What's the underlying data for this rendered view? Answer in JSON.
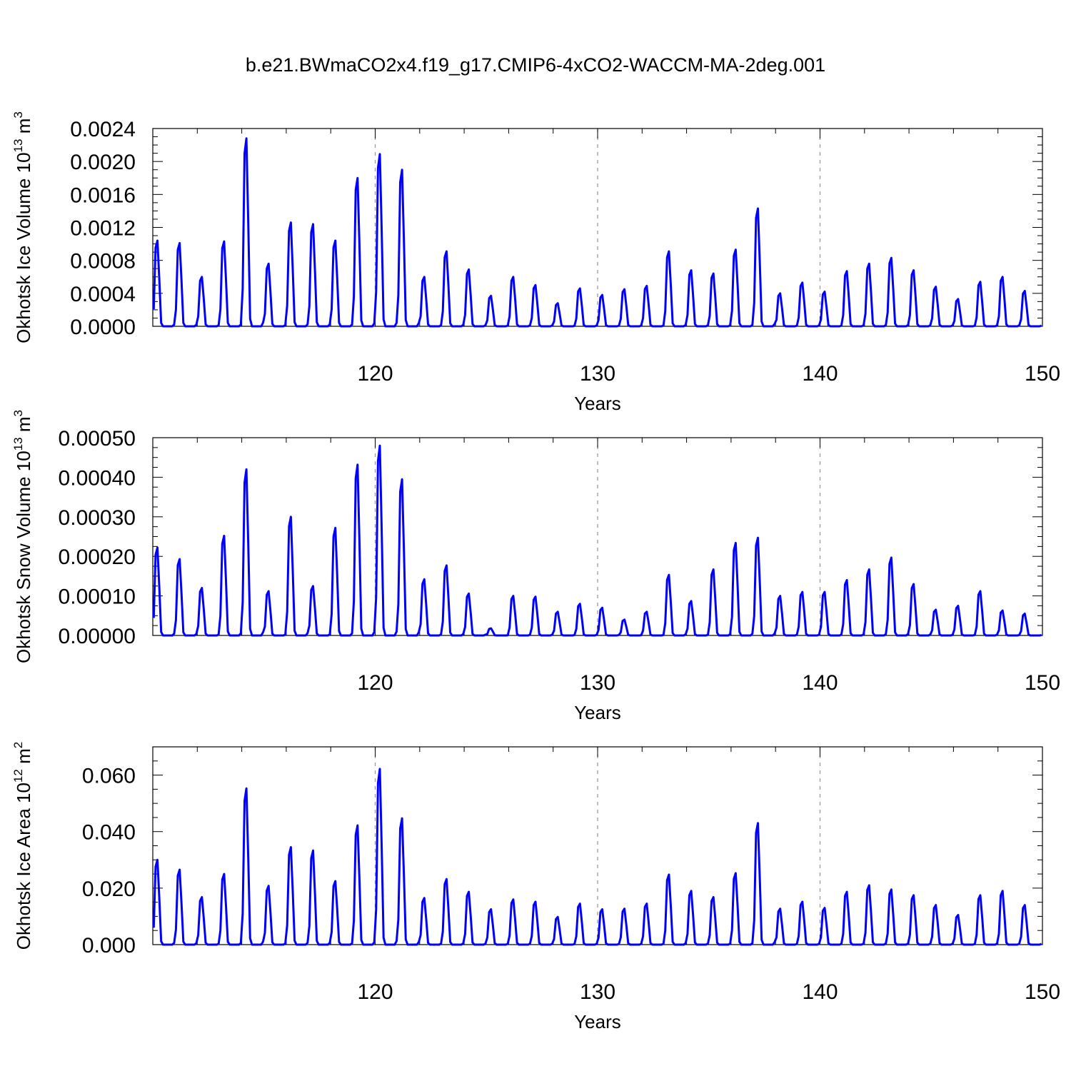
{
  "title": "b.e21.BWmaCO2x4.f19_g17.CMIP6-4xCO2-WACCM-MA-2deg.001",
  "colors": {
    "line": "#0000ff",
    "axis": "#000000",
    "grid": "#999999"
  },
  "chart_data": [
    {
      "type": "line",
      "name": "okhotsk-ice-volume",
      "xlabel": "Years",
      "ylabel": "Okhotsk Ice Volume 10",
      "ylabel_exp": "13",
      "ylabel_unit": " m",
      "ylabel_unit_exp": "3",
      "xlim": [
        110,
        150
      ],
      "ylim": [
        0,
        0.0024
      ],
      "x_ticks": [
        120,
        130,
        140,
        150
      ],
      "x_tick_labels": [
        "120",
        "130",
        "140",
        "150"
      ],
      "y_ticks": [
        0,
        0.0004,
        0.0008,
        0.0012,
        0.0016,
        0.002,
        0.0024
      ],
      "y_tick_labels": [
        "0.0000",
        "0.0004",
        "0.0008",
        "0.0012",
        "0.0016",
        "0.0020",
        "0.0024"
      ],
      "grid_x": [
        120,
        130,
        140
      ],
      "peaks": [
        0.00104,
        0.00101,
        0.0006,
        0.00103,
        0.00228,
        0.00076,
        0.00126,
        0.00124,
        0.00104,
        0.0018,
        0.00209,
        0.0019,
        0.0006,
        0.00091,
        0.00069,
        0.00037,
        0.0006,
        0.0005,
        0.00028,
        0.00046,
        0.00038,
        0.00045,
        0.00049,
        0.00091,
        0.00068,
        0.00064,
        0.00093,
        0.00143,
        0.0004,
        0.00053,
        0.00042,
        0.00067,
        0.00076,
        0.00083,
        0.00068,
        0.00048,
        0.00033,
        0.00054,
        0.0006,
        0.00043
      ]
    },
    {
      "type": "line",
      "name": "okhotsk-snow-volume",
      "xlabel": "Years",
      "ylabel": "Okhotsk Snow Volume 10",
      "ylabel_exp": "13",
      "ylabel_unit": " m",
      "ylabel_unit_exp": "3",
      "xlim": [
        110,
        150
      ],
      "ylim": [
        0,
        0.0005
      ],
      "x_ticks": [
        120,
        130,
        140,
        150
      ],
      "x_tick_labels": [
        "120",
        "130",
        "140",
        "150"
      ],
      "y_ticks": [
        0,
        0.0001,
        0.0002,
        0.0003,
        0.0004,
        0.0005
      ],
      "y_tick_labels": [
        "0.00000",
        "0.00010",
        "0.00020",
        "0.00030",
        "0.00040",
        "0.00050"
      ],
      "grid_x": [
        120,
        130,
        140
      ],
      "peaks": [
        0.000222,
        0.000193,
        0.00012,
        0.000252,
        0.00042,
        0.000112,
        0.0003,
        0.000125,
        0.000272,
        0.000432,
        0.00048,
        0.000395,
        0.000142,
        0.000177,
        0.000106,
        1.8e-05,
        0.0001,
        9.8e-05,
        6e-05,
        8e-05,
        7e-05,
        4e-05,
        6e-05,
        0.000153,
        8.7e-05,
        0.000167,
        0.000234,
        0.000247,
        0.0001,
        0.00011,
        0.00011,
        0.00014,
        0.000167,
        0.000197,
        0.00013,
        6.5e-05,
        7.5e-05,
        0.000112,
        6.3e-05,
        5.5e-05
      ]
    },
    {
      "type": "line",
      "name": "okhotsk-ice-area",
      "xlabel": "Years",
      "ylabel": "Okhotsk Ice Area 10",
      "ylabel_exp": "12",
      "ylabel_unit": " m",
      "ylabel_unit_exp": "2",
      "xlim": [
        110,
        150
      ],
      "ylim": [
        0,
        0.07
      ],
      "x_ticks": [
        120,
        130,
        140,
        150
      ],
      "x_tick_labels": [
        "120",
        "130",
        "140",
        "150"
      ],
      "y_ticks": [
        0,
        0.02,
        0.04,
        0.06
      ],
      "y_tick_labels": [
        "0.000",
        "0.020",
        "0.040",
        "0.060"
      ],
      "grid_x": [
        120,
        130,
        140
      ],
      "peaks": [
        0.03,
        0.0265,
        0.0168,
        0.025,
        0.0553,
        0.0208,
        0.0345,
        0.0333,
        0.0225,
        0.0422,
        0.0622,
        0.0447,
        0.0165,
        0.0232,
        0.0187,
        0.0125,
        0.016,
        0.0152,
        0.0098,
        0.0145,
        0.0125,
        0.0127,
        0.0145,
        0.0248,
        0.019,
        0.0168,
        0.0253,
        0.043,
        0.0127,
        0.0152,
        0.013,
        0.0187,
        0.021,
        0.0195,
        0.0175,
        0.014,
        0.0105,
        0.0175,
        0.019,
        0.014
      ]
    }
  ]
}
